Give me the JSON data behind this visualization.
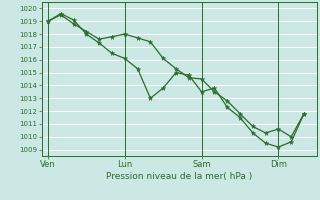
{
  "background_color": "#cce8e4",
  "plot_bg_color": "#cce8e4",
  "grid_color": "#ffffff",
  "line_color": "#2d6b2d",
  "marker_color": "#2d6b2d",
  "xlabel": "Pression niveau de la mer( hPa )",
  "ylim": [
    1008.5,
    1020.5
  ],
  "yticks": [
    1009,
    1010,
    1011,
    1012,
    1013,
    1014,
    1015,
    1016,
    1017,
    1018,
    1019,
    1020
  ],
  "xtick_labels": [
    "Ven",
    "Lun",
    "Sam",
    "Dim"
  ],
  "xtick_positions": [
    0,
    12,
    24,
    36
  ],
  "xlim": [
    -1,
    42
  ],
  "vline_positions": [
    0,
    12,
    24,
    36
  ],
  "line1_x": [
    0,
    2,
    4,
    6,
    8,
    10,
    12,
    14,
    16,
    18,
    20,
    22,
    24,
    26,
    28,
    30,
    32,
    34,
    36,
    38,
    40
  ],
  "line1_y": [
    1019.0,
    1019.5,
    1018.8,
    1018.2,
    1017.6,
    1017.8,
    1018.0,
    1017.7,
    1017.4,
    1016.1,
    1015.3,
    1014.6,
    1014.5,
    1013.5,
    1012.8,
    1011.8,
    1010.8,
    1010.3,
    1010.6,
    1010.0,
    1011.8
  ],
  "line2_x": [
    0,
    2,
    4,
    6,
    8,
    10,
    12,
    14,
    16,
    18,
    20,
    22,
    24,
    26,
    28,
    30,
    32,
    34,
    36,
    38,
    40
  ],
  "line2_y": [
    1019.0,
    1019.6,
    1019.1,
    1018.0,
    1017.3,
    1016.5,
    1016.1,
    1015.3,
    1013.0,
    1013.8,
    1015.0,
    1014.8,
    1013.5,
    1013.8,
    1012.3,
    1011.5,
    1010.3,
    1009.5,
    1009.2,
    1009.6,
    1011.8
  ],
  "figsize": [
    3.2,
    2.0
  ],
  "dpi": 100
}
